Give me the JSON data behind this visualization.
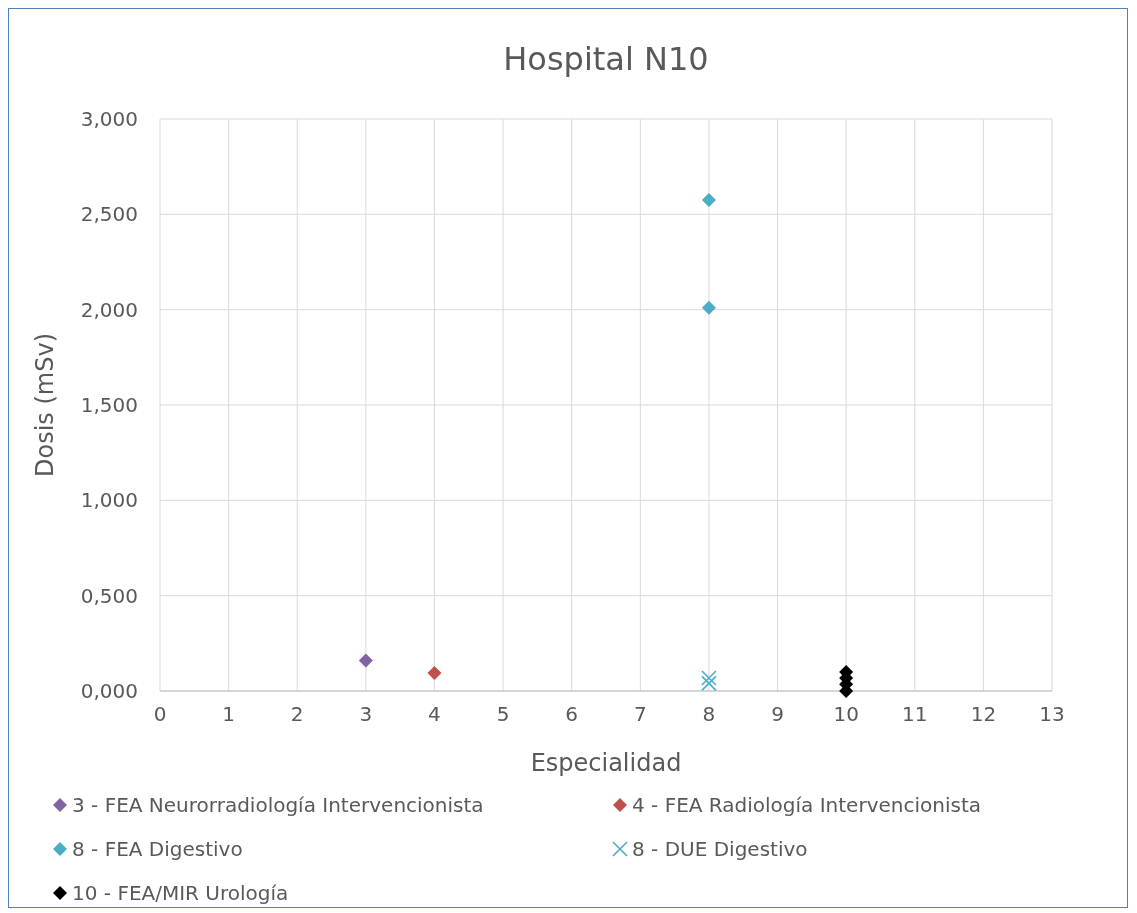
{
  "chart_data": {
    "type": "scatter",
    "title": "Hospital N10",
    "xlabel": "Especialidad",
    "ylabel": "Dosis  (mSv)",
    "xlim": [
      0,
      13
    ],
    "xticks": [
      0,
      1,
      2,
      3,
      4,
      5,
      6,
      7,
      8,
      9,
      10,
      11,
      12,
      13
    ],
    "ylim": [
      0,
      3
    ],
    "yticks": [
      {
        "value": 0,
        "label": "0,000"
      },
      {
        "value": 0.5,
        "label": "0,500"
      },
      {
        "value": 1,
        "label": "1,000"
      },
      {
        "value": 1.5,
        "label": "1,500"
      },
      {
        "value": 2,
        "label": "2,000"
      },
      {
        "value": 2.5,
        "label": "2,500"
      },
      {
        "value": 3,
        "label": "3,000"
      }
    ],
    "grid": true,
    "legend": "bottom",
    "series": [
      {
        "name": "3 - FEA Neurorradiología Intervencionista",
        "color": "#8064a2",
        "marker": "diamond",
        "x": [
          3
        ],
        "values": [
          0.16
        ]
      },
      {
        "name": "4 - FEA Radiología Intervencionista",
        "color": "#c0504d",
        "marker": "diamond",
        "x": [
          4
        ],
        "values": [
          0.094
        ]
      },
      {
        "name": "8 - FEA Digestivo",
        "color": "#4bacc6",
        "marker": "diamond",
        "x": [
          8,
          8
        ],
        "values": [
          2.575,
          2.01
        ]
      },
      {
        "name": "8 - DUE Digestivo",
        "color": "#4bacc6",
        "marker": "cross",
        "x": [
          8,
          8
        ],
        "values": [
          0.068,
          0.04
        ]
      },
      {
        "name": "10 - FEA/MIR Urología",
        "color": "#000000",
        "marker": "diamond",
        "x": [
          10,
          10,
          10,
          10
        ],
        "values": [
          0.1,
          0.068,
          0.035,
          0
        ]
      }
    ]
  }
}
